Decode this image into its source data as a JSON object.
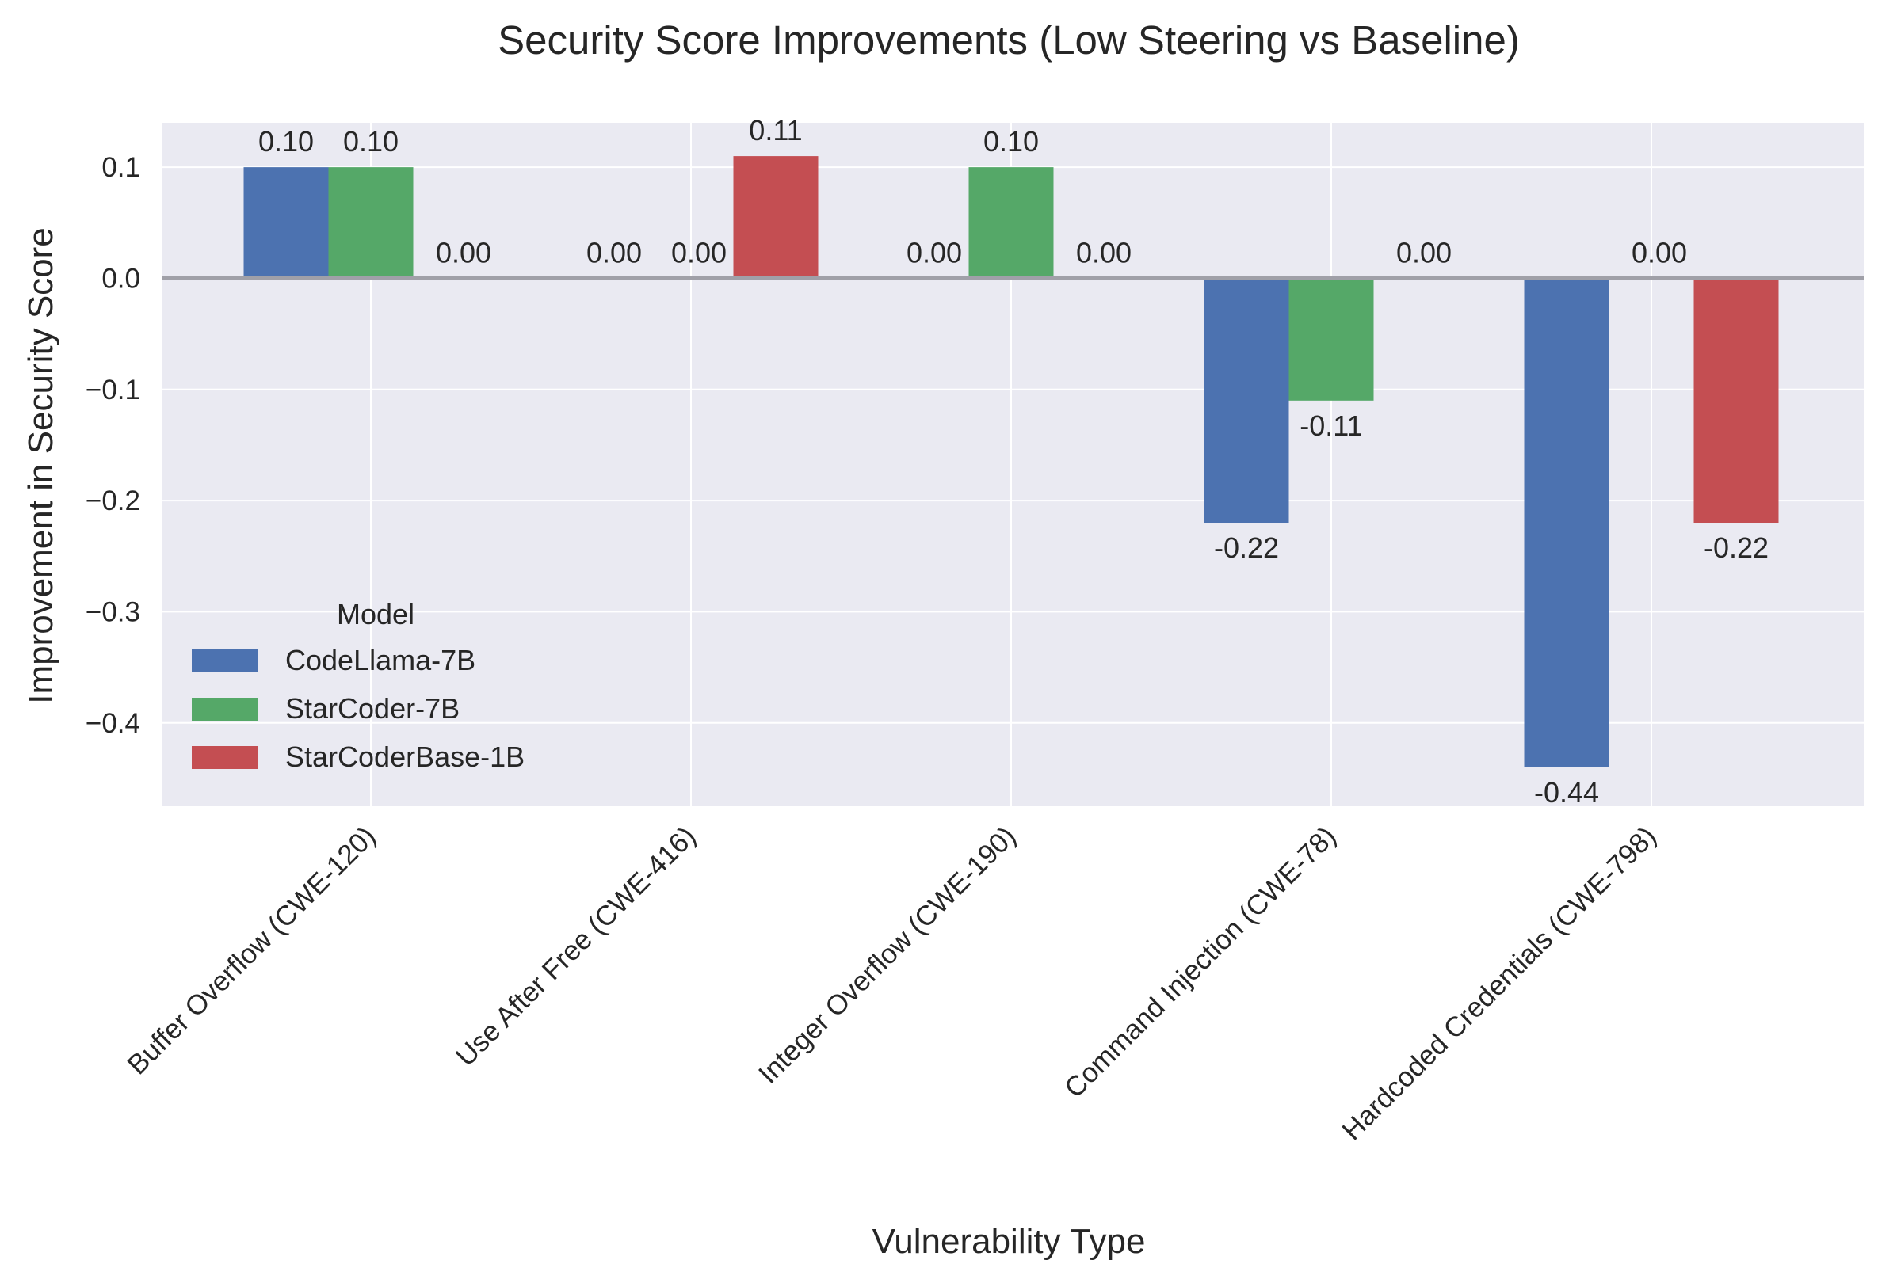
{
  "chart_data": {
    "type": "bar",
    "title": "Security Score Improvements (Low Steering vs Baseline)",
    "xlabel": "Vulnerability Type",
    "ylabel": "Improvement in Security Score",
    "categories": [
      "Buffer Overflow (CWE-120)",
      "Use After Free (CWE-416)",
      "Integer Overflow (CWE-190)",
      "Command Injection (CWE-78)",
      "Hardcoded Credentials (CWE-798)"
    ],
    "series": [
      {
        "name": "CodeLlama-7B",
        "color": "#4c72b0",
        "values": [
          0.1,
          0.0,
          0.0,
          -0.22,
          -0.44
        ],
        "labels": [
          "0.10",
          "0.00",
          "0.00",
          "-0.22",
          "-0.44"
        ]
      },
      {
        "name": "StarCoder-7B",
        "color": "#55a868",
        "values": [
          0.1,
          0.0,
          0.1,
          -0.11,
          0.0
        ],
        "labels": [
          "0.10",
          "0.00",
          "0.10",
          "-0.11",
          "0.00"
        ]
      },
      {
        "name": "StarCoderBase-1B",
        "color": "#c44e52",
        "values": [
          0.0,
          0.11,
          0.0,
          0.0,
          -0.22
        ],
        "labels": [
          "0.00",
          "0.11",
          "0.00",
          "0.00",
          "-0.22"
        ]
      }
    ],
    "yticks": [
      0.1,
      0.0,
      -0.1,
      -0.2,
      -0.3,
      -0.4
    ],
    "ytick_labels": [
      "0.1",
      "0.0",
      "−0.1",
      "−0.2",
      "−0.3",
      "−0.4"
    ],
    "ylim": [
      -0.475,
      0.14
    ],
    "grid": true,
    "zero_line": true,
    "legend": {
      "title": "Model",
      "position": "lower-left"
    },
    "colors": {
      "background": "#eaeaf2",
      "grid": "#ffffff",
      "zero_line": "#a0a0a8",
      "text": "#262626"
    }
  }
}
